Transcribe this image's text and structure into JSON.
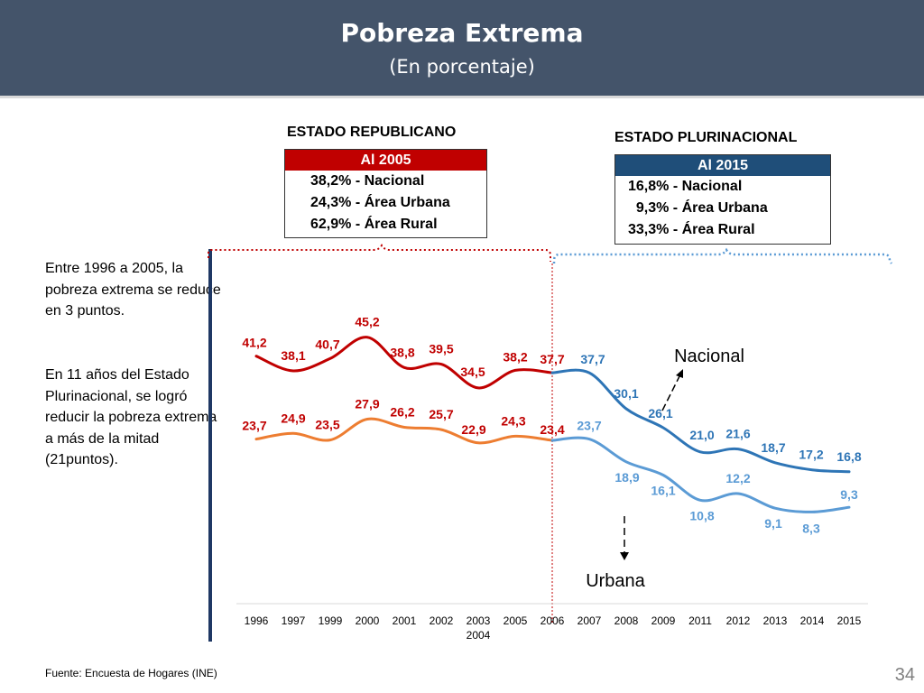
{
  "header": {
    "title": "Pobreza Extrema",
    "subtitle": "(En porcentaje)"
  },
  "republicano": {
    "title": "ESTADO REPUBLICANO",
    "box_header": "Al 2005",
    "lines": [
      "38,2% - Nacional",
      "24,3% - Área Urbana",
      "62,9% - Área Rural"
    ]
  },
  "plurinacional": {
    "title": "ESTADO PLURINACIONAL",
    "box_header": "Al 2015",
    "lines": [
      "16,8% - Nacional",
      "  9,3% - Área Urbana",
      "33,3% - Área Rural"
    ]
  },
  "notes": {
    "p1": "Entre 1996 a  2005, la pobreza extrema se reduce en 3 puntos.",
    "p2": "En 11 años del Estado Plurinacional, se logró reducir la pobreza extrema a más de la mitad (21puntos)."
  },
  "source": "Fuente: Encuesta de Hogares (INE)",
  "page_number": "34",
  "colors": {
    "header_bg": "#44546a",
    "red": "#c00000",
    "orange": "#ed7d31",
    "navy": "#2e75b6",
    "lightblue": "#5b9bd5",
    "box_blue": "#1f4e79",
    "box_red": "#c00000"
  },
  "chart_data": {
    "type": "line",
    "title": "Pobreza Extrema",
    "ylabel": "En porcentaje",
    "categories": [
      "1996",
      "1997",
      "1999",
      "2000",
      "2001",
      "2002",
      "2003 2004",
      "2005",
      "2006",
      "2007",
      "2008",
      "2009",
      "2011",
      "2012",
      "2013",
      "2014",
      "2015"
    ],
    "series": [
      {
        "name": "Nacional",
        "values": [
          41.2,
          38.1,
          40.7,
          45.2,
          38.8,
          39.5,
          34.5,
          38.2,
          37.7,
          37.7,
          30.1,
          26.1,
          21.0,
          21.6,
          18.7,
          17.2,
          16.8
        ],
        "labels": [
          "41,2",
          "38,1",
          "40,7",
          "45,2",
          "38,8",
          "39,5",
          "34,5",
          "38,2",
          "37,7",
          "37,7",
          "30,1",
          "26,1",
          "21,0",
          "21,6",
          "18,7",
          "17,2",
          "16,8"
        ]
      },
      {
        "name": "Urbana",
        "values": [
          23.7,
          24.9,
          23.5,
          27.9,
          26.2,
          25.7,
          22.9,
          24.3,
          23.4,
          23.7,
          18.9,
          16.1,
          10.8,
          12.2,
          9.1,
          8.3,
          9.3
        ],
        "labels": [
          "23,7",
          "24,9",
          "23,5",
          "27,9",
          "26,2",
          "25,7",
          "22,9",
          "24,3",
          "23,4",
          "23,7",
          "18,9",
          "16,1",
          "10,8",
          "12,2",
          "9,1",
          "8,3",
          "9,3"
        ]
      }
    ],
    "split_after": "2006",
    "annotations": [
      "Nacional",
      "Urbana"
    ],
    "ylim": [
      0,
      50
    ]
  }
}
